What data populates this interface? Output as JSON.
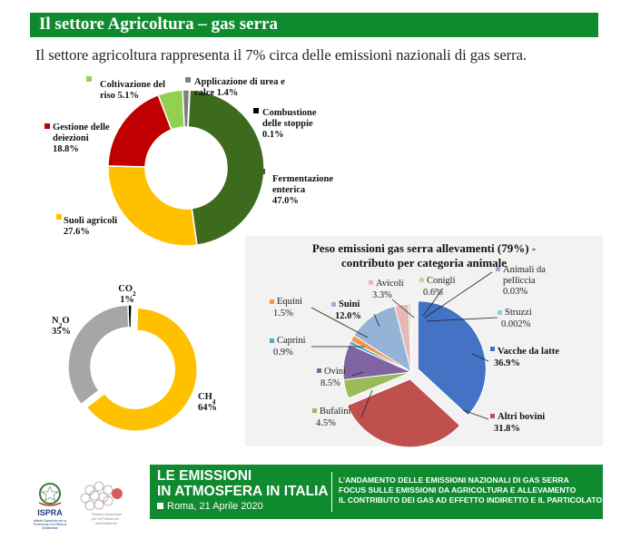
{
  "header": {
    "title": "Il settore Agricoltura – gas serra"
  },
  "subtitle": "Il settore agricoltura rappresenta il 7% circa delle emissioni nazionali di gas serra.",
  "chart_data": [
    {
      "type": "pie",
      "variant": "donut",
      "categories": [
        "Fermentazione enterica",
        "Suoli agricoli",
        "Gestione delle deiezioni",
        "Coltivazione del riso",
        "Applicazione di urea e calce",
        "Combustione delle stoppie"
      ],
      "values": [
        47.0,
        27.6,
        18.8,
        5.1,
        1.4,
        0.1
      ],
      "labels": [
        "Fermentazione\nenterica\n47.0%",
        "Suoli agricoli\n27.6%",
        "Gestione delle\ndeiezioni\n18.8%",
        "Coltivazione del\nriso 5.1%",
        "Applicazione di urea e\ncalce 1.4%",
        "Combustione\ndelle stoppie\n0.1%"
      ],
      "colors": [
        "#3d6b1e",
        "#ffc000",
        "#c00000",
        "#92d050",
        "#7f7f7f",
        "#000000"
      ]
    },
    {
      "type": "pie",
      "variant": "donut",
      "categories": [
        "CH4",
        "N2O",
        "CO2"
      ],
      "values": [
        64,
        35,
        1
      ],
      "labels": [
        {
          "name": "CH",
          "sub": "4",
          "value": "64%"
        },
        {
          "name": "N",
          "sub": "2",
          "after": "O",
          "value": "35%"
        },
        {
          "name": "CO",
          "sub": "2",
          "value": "1%"
        }
      ],
      "colors": [
        "#ffc000",
        "#a6a6a6",
        "#000000"
      ]
    },
    {
      "type": "pie",
      "title": "Peso emissioni gas serra allevamenti (79%) -\ncontributo per categoria animale",
      "categories": [
        "Vacche da latte",
        "Altri bovini",
        "Bufalini",
        "Ovini",
        "Caprini",
        "Equini",
        "Suini",
        "Avicoli",
        "Conigli",
        "Animali da pelliccia",
        "Struzzi"
      ],
      "values": [
        36.9,
        31.8,
        4.5,
        8.5,
        0.9,
        1.5,
        12.0,
        3.3,
        0.6,
        0.03,
        0.002
      ],
      "value_labels": [
        "36.9%",
        "31.8%",
        "4.5%",
        "8.5%",
        "0.9%",
        "1.5%",
        "12.0%",
        "3.3%",
        "0.6%",
        "0.03%",
        "0.002%"
      ],
      "colors": [
        "#4472c4",
        "#c0504d",
        "#9bbb59",
        "#8064a2",
        "#4bacc6",
        "#f79646",
        "#95b3d7",
        "#e6b9b8",
        "#c3d69b",
        "#b3a2c7",
        "#93cddd"
      ],
      "exploded": [
        "Vacche da latte",
        "Altri bovini"
      ],
      "bold_labels": [
        "Vacche da latte",
        "Altri bovini",
        "Suini"
      ]
    }
  ],
  "footer": {
    "title_line1": "LE EMISSIONI",
    "title_line2": "IN ATMOSFERA IN ITALIA",
    "date": "Roma, 21 Aprile 2020",
    "desc_line1": "L’ANDAMENTO DELLE EMISSIONI NAZIONALI DI GAS SERRA",
    "desc_line2": "FOCUS SULLE EMISSIONI DA AGRICOLTURA E ALLEVAMENTO",
    "desc_line3": "IL CONTRIBUTO DEI GAS AD EFFETTO INDIRETTO E IL PARTICOLATO"
  },
  "logos": {
    "ispra": {
      "name": "ISPRA",
      "caption": "Istituto Superiore per la Protezione e la Ricerca Ambientale"
    },
    "snpa": {
      "caption": "Sistema Nazionale per la Protezione dell'Ambiente"
    }
  }
}
